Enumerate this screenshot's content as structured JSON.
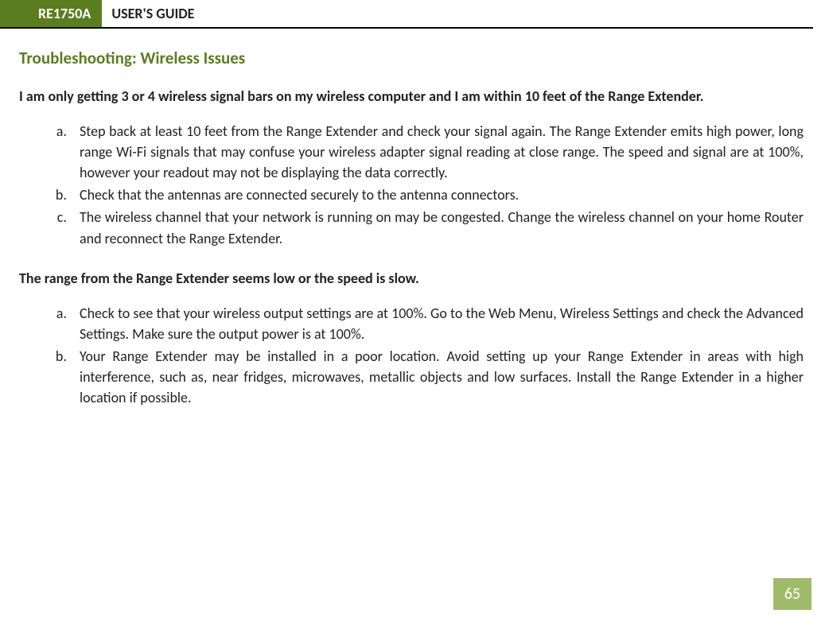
{
  "header": {
    "model": "RE1750A",
    "title": "USER'S GUIDE"
  },
  "section_heading": "Troubleshooting: Wireless Issues",
  "issues": [
    {
      "title": "I am only getting 3 or 4 wireless signal bars on my wireless computer and I am within 10 feet of the Range Extender.",
      "items": [
        "Step back at least 10 feet from the Range Extender and check your signal again. The Range Extender emits high power, long range Wi-Fi signals that may confuse your wireless adapter signal reading at close range. The speed and signal are at 100%, however your readout may not be displaying the data correctly.",
        "Check that the antennas are connected securely to the antenna connectors.",
        "The wireless channel that your network is running on may be congested. Change the wireless channel on your home Router and reconnect the Range Extender."
      ]
    },
    {
      "title": "The range from the Range Extender seems low or the speed is slow.",
      "items": [
        "Check to see that your wireless output settings are at 100%. Go to the Web Menu, Wireless Settings and check the Advanced Settings. Make sure the output power is at 100%.",
        "Your Range Extender may be installed in a poor location. Avoid setting up your Range Extender in areas with high interference, such as, near fridges, microwaves, metallic objects and low surfaces. Install the Range Extender in a higher location if possible."
      ]
    }
  ],
  "page_number": "65",
  "colors": {
    "brand_green": "#5a7e1f",
    "page_badge": "#9fbb6a",
    "text": "#222222",
    "background": "#ffffff"
  },
  "typography": {
    "heading_fontsize": 21,
    "body_fontsize": 18,
    "header_fontsize": 18,
    "page_number_fontsize": 20
  }
}
